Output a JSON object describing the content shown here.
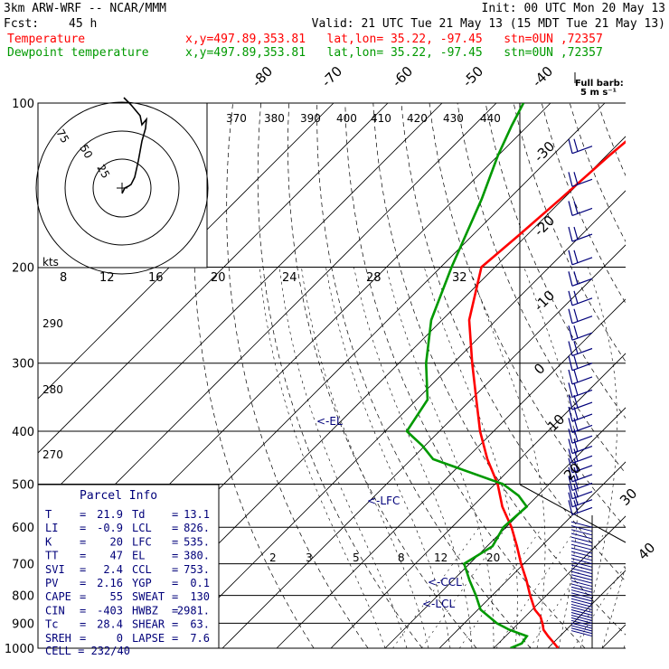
{
  "header": {
    "model": "3km ARW-WRF -- NCAR/MMM",
    "init": "Init: 00 UTC Mon 20 May 13",
    "fcst_label": "Fcst:",
    "fcst_value": "45 h",
    "valid": "Valid: 21 UTC Tue 21 May 13 (15 MDT Tue 21 May 13)"
  },
  "legend": {
    "temperature": {
      "label": "Temperature",
      "info": "x,y=497.89,353.81   lat,lon= 35.22, -97.45   stn=0UN ,72357",
      "color": "#ff0000"
    },
    "dewpoint": {
      "label": "Dewpoint temperature",
      "info": "x,y=497.89,353.81   lat,lon= 35.22, -97.45   stn=0UN ,72357",
      "color": "#009900"
    }
  },
  "barb_key": {
    "line1": "Full barb:",
    "line2": "5 m s⁻¹"
  },
  "hodograph": {
    "rings": [
      "75",
      "50",
      "25"
    ],
    "unit": "kts"
  },
  "parcel_info": {
    "title": "Parcel Info",
    "rows": [
      [
        "T",
        "21.9",
        "Td",
        "13.1"
      ],
      [
        "LI",
        "-0.9",
        "LCL",
        "826."
      ],
      [
        "K",
        "20",
        "LFC",
        "535."
      ],
      [
        "TT",
        "47",
        "EL",
        "380."
      ],
      [
        "SVI",
        "2.4",
        "CCL",
        "753."
      ],
      [
        "PV",
        "2.16",
        "YGP",
        "0.1"
      ],
      [
        "CAPE",
        "55",
        "SWEAT",
        "130"
      ],
      [
        "CIN",
        "-403",
        "HWBZ",
        "2981."
      ],
      [
        "Tc",
        "28.4",
        "SHEAR",
        "63."
      ],
      [
        "SREH",
        "0",
        "LAPSE",
        "7.6"
      ]
    ],
    "cell_label": "CELL",
    "cell_value": "232/40"
  },
  "annotations": {
    "el": "<-EL",
    "lfc": "<-LFC",
    "ccl": "<-CCL",
    "lcl": "<-LCL"
  },
  "colors": {
    "temperature": "#ff0000",
    "dewpoint": "#009900",
    "grid": "#000000",
    "barb": "#00007a"
  },
  "chart_data": {
    "type": "line",
    "title": "",
    "ylabel": "",
    "pressure_levels": [
      "100",
      "200",
      "300",
      "400",
      "500",
      "600",
      "700",
      "800",
      "900",
      "1000"
    ],
    "temperature_top_labels": [
      "-80",
      "-70",
      "-60",
      "-50",
      "-40"
    ],
    "temperature_right_labels": [
      "-30",
      "-20",
      "-10",
      "0",
      "10",
      "20",
      "30",
      "40"
    ],
    "theta_labels": [
      "370",
      "380",
      "390",
      "400",
      "410",
      "420",
      "430",
      "440",
      "290",
      "280",
      "270"
    ],
    "mixing_ratio_labels": [
      "2",
      "3",
      "5",
      "8",
      "12",
      "20"
    ],
    "bottom_scale_labels": [
      "8",
      "12",
      "16",
      "20",
      "24",
      "28",
      "32"
    ],
    "series": [
      {
        "name": "Temperature",
        "p": [
          1000,
          980,
          950,
          925,
          900,
          875,
          850,
          800,
          750,
          700,
          650,
          600,
          550,
          500,
          450,
          400,
          350,
          300,
          250,
          200,
          175,
          150,
          125,
          110,
          100
        ],
        "t": [
          21.9,
          20.3,
          17.8,
          15.8,
          14.4,
          12.8,
          10.5,
          7.0,
          3.5,
          -0.5,
          -4.5,
          -9.0,
          -14.5,
          -19.5,
          -26.0,
          -32.5,
          -39.0,
          -46.5,
          -55.0,
          -62.5,
          -61.5,
          -60.5,
          -59.5,
          -58.5,
          -58.0
        ]
      },
      {
        "name": "Dewpoint temperature",
        "p": [
          1000,
          980,
          950,
          925,
          900,
          850,
          800,
          750,
          700,
          650,
          600,
          550,
          525,
          500,
          450,
          425,
          400,
          350,
          300,
          250,
          200,
          150,
          125,
          110,
          100
        ],
        "t": [
          13.1,
          14.3,
          13.9,
          9.5,
          6.0,
          0.5,
          -3.0,
          -7.0,
          -11.0,
          -9.0,
          -10.5,
          -10.0,
          -13.5,
          -18.5,
          -36.0,
          -40.5,
          -46.0,
          -48.0,
          -55.0,
          -62.0,
          -68.0,
          -75.0,
          -80.0,
          -83.0,
          -85.0
        ]
      }
    ],
    "hodograph_points": [
      [
        0,
        -6
      ],
      [
        3,
        0
      ],
      [
        7,
        2
      ],
      [
        10,
        4
      ],
      [
        14,
        12
      ],
      [
        18,
        30
      ],
      [
        22,
        52
      ],
      [
        26,
        66
      ],
      [
        27,
        76
      ],
      [
        22,
        70
      ],
      [
        20,
        80
      ],
      [
        10,
        92
      ],
      [
        2,
        100
      ]
    ]
  }
}
